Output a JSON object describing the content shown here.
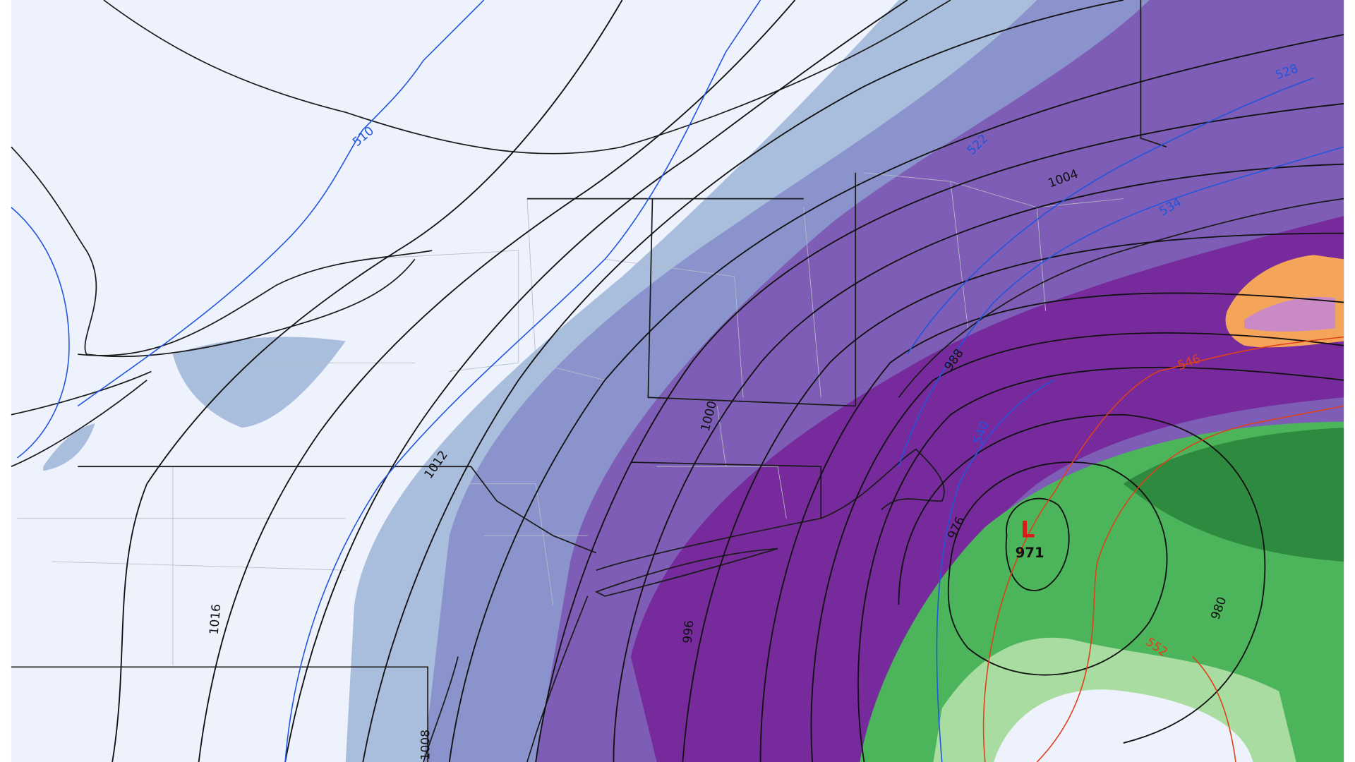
{
  "map": {
    "isobar_labels": [
      "1004",
      "988",
      "1000",
      "1012",
      "1016",
      "996",
      "976",
      "980",
      "1008"
    ],
    "thickness_labels": [
      "510",
      "528",
      "522",
      "534",
      "540",
      "546",
      "552"
    ],
    "low": {
      "symbol": "L",
      "pressure": "971"
    }
  }
}
